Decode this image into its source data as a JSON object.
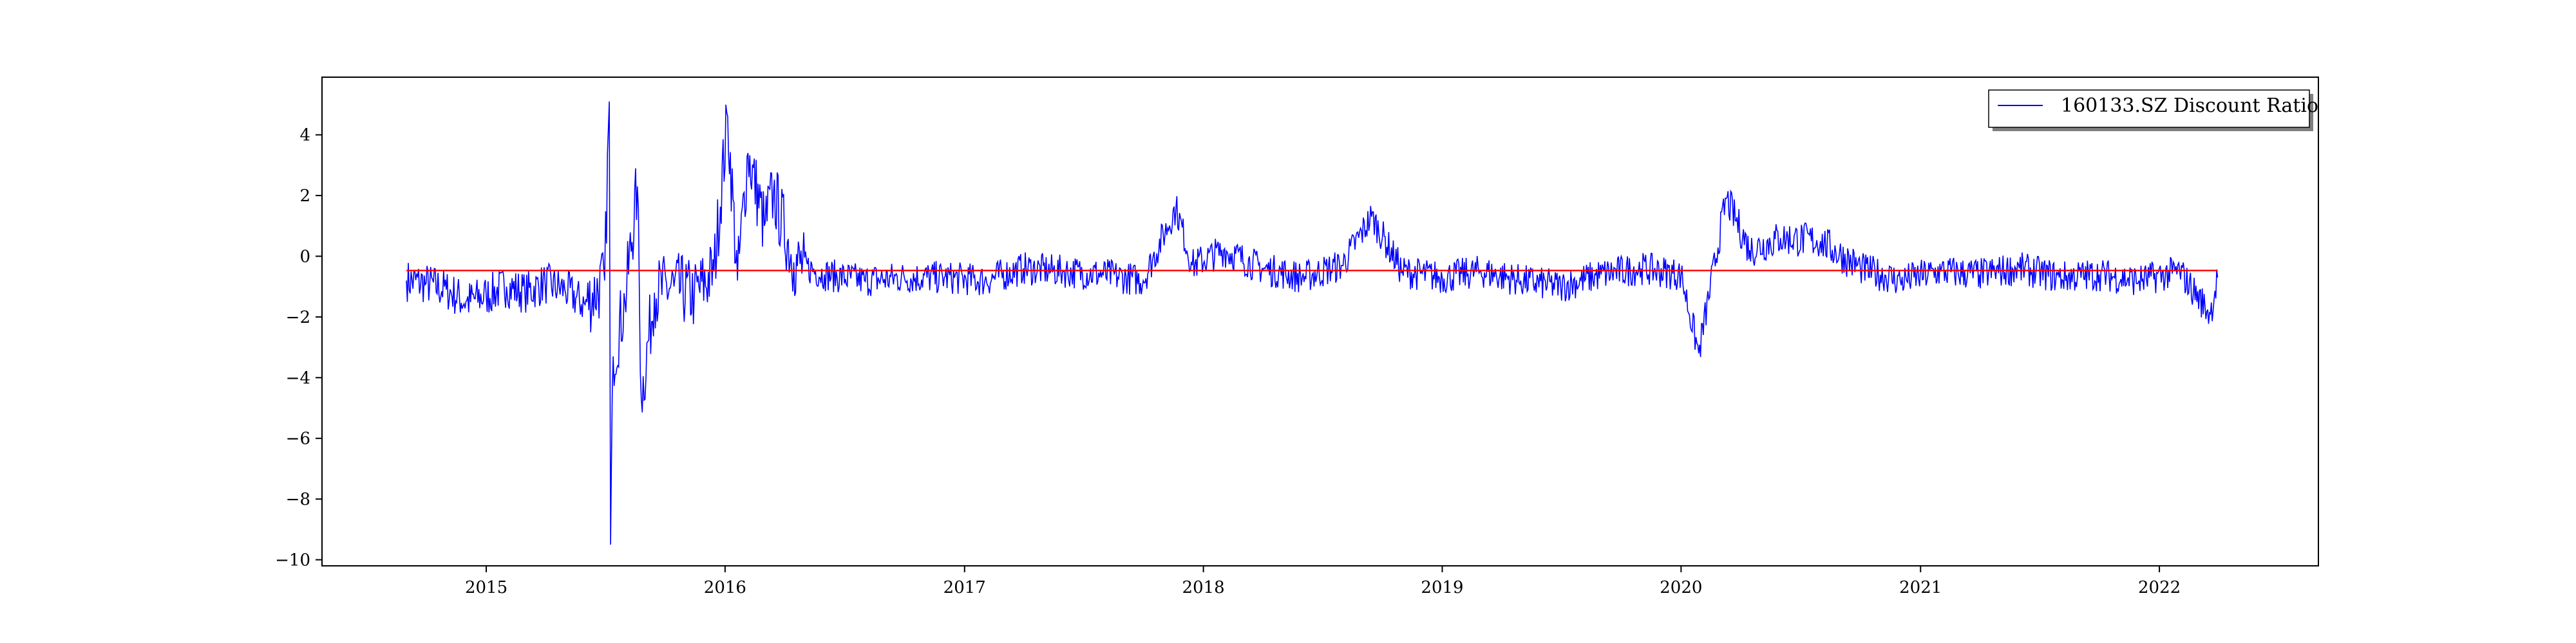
{
  "chart_data": {
    "type": "line",
    "title": "",
    "xlabel": "",
    "ylabel": "",
    "xlim": [
      "2014-04-25",
      "2022-09-01"
    ],
    "ylim": [
      -10.2,
      5.9
    ],
    "grid": false,
    "legend_placement": "top-right",
    "x_ticks": [
      "2015",
      "2016",
      "2017",
      "2018",
      "2019",
      "2020",
      "2021",
      "2022"
    ],
    "y_ticks": [
      "4",
      "2",
      "0",
      "−2",
      "−4",
      "−6",
      "−8",
      "−10"
    ],
    "x_range": [
      "2014-09-01",
      "2022-03-31"
    ],
    "series": [
      {
        "name": "160133.SZ Discount Ratio",
        "color": "#0000ff",
        "x_start": "2014-09-01",
        "x_end": "2022-03-31",
        "points": [
          [
            "2014-09-01",
            -0.8
          ],
          [
            "2014-10-01",
            -0.9
          ],
          [
            "2014-11-01",
            -1.1
          ],
          [
            "2014-12-01",
            -1.5
          ],
          [
            "2015-01-01",
            -1.3
          ],
          [
            "2015-02-01",
            -1.0
          ],
          [
            "2015-03-01",
            -1.2
          ],
          [
            "2015-04-01",
            -0.9
          ],
          [
            "2015-05-01",
            -1.1
          ],
          [
            "2015-06-01",
            -1.6
          ],
          [
            "2015-07-01",
            -0.8
          ],
          [
            "2015-07-08",
            5.1
          ],
          [
            "2015-07-10",
            -9.5
          ],
          [
            "2015-07-14",
            -3.3
          ],
          [
            "2015-08-01",
            -1.5
          ],
          [
            "2015-08-20",
            2.3
          ],
          [
            "2015-08-26",
            -4.7
          ],
          [
            "2015-09-15",
            -1.2
          ],
          [
            "2015-10-15",
            -1.0
          ],
          [
            "2015-11-15",
            -1.3
          ],
          [
            "2015-12-15",
            -0.5
          ],
          [
            "2016-01-05",
            4.6
          ],
          [
            "2016-01-20",
            -0.8
          ],
          [
            "2016-02-05",
            3.4
          ],
          [
            "2016-03-01",
            1.0
          ],
          [
            "2016-03-15",
            2.1
          ],
          [
            "2016-04-15",
            -0.2
          ],
          [
            "2016-06-01",
            -0.6
          ],
          [
            "2016-08-01",
            -0.8
          ],
          [
            "2016-10-01",
            -0.7
          ],
          [
            "2016-12-01",
            -0.7
          ],
          [
            "2017-02-01",
            -0.8
          ],
          [
            "2017-04-01",
            -0.4
          ],
          [
            "2017-06-01",
            -0.5
          ],
          [
            "2017-08-01",
            -0.6
          ],
          [
            "2017-10-01",
            -0.8
          ],
          [
            "2017-11-20",
            1.6
          ],
          [
            "2017-12-15",
            -0.3
          ],
          [
            "2018-02-01",
            0.2
          ],
          [
            "2018-04-01",
            -0.4
          ],
          [
            "2018-06-01",
            -0.7
          ],
          [
            "2018-08-01",
            -0.3
          ],
          [
            "2018-09-15",
            1.3
          ],
          [
            "2018-11-01",
            -0.5
          ],
          [
            "2019-01-01",
            -0.7
          ],
          [
            "2019-03-01",
            -0.5
          ],
          [
            "2019-05-01",
            -0.8
          ],
          [
            "2019-07-01",
            -1.0
          ],
          [
            "2019-09-01",
            -0.6
          ],
          [
            "2019-11-01",
            -0.4
          ],
          [
            "2020-01-01",
            -0.6
          ],
          [
            "2020-01-28",
            -3.2
          ],
          [
            "2020-03-10",
            1.9
          ],
          [
            "2020-04-15",
            0.2
          ],
          [
            "2020-06-01",
            0.6
          ],
          [
            "2020-08-01",
            0.5
          ],
          [
            "2020-10-01",
            -0.4
          ],
          [
            "2020-12-01",
            -0.8
          ],
          [
            "2021-02-01",
            -0.5
          ],
          [
            "2021-04-01",
            -0.6
          ],
          [
            "2021-06-01",
            -0.4
          ],
          [
            "2021-08-01",
            -0.7
          ],
          [
            "2021-10-01",
            -0.6
          ],
          [
            "2021-12-01",
            -0.8
          ],
          [
            "2022-02-01",
            -0.5
          ],
          [
            "2022-03-20",
            -1.9
          ],
          [
            "2022-03-31",
            -0.7
          ]
        ]
      },
      {
        "color": "#ff0000",
        "x_start": "2014-09-01",
        "x_end": "2022-03-31",
        "mean_value": -0.47
      }
    ]
  }
}
